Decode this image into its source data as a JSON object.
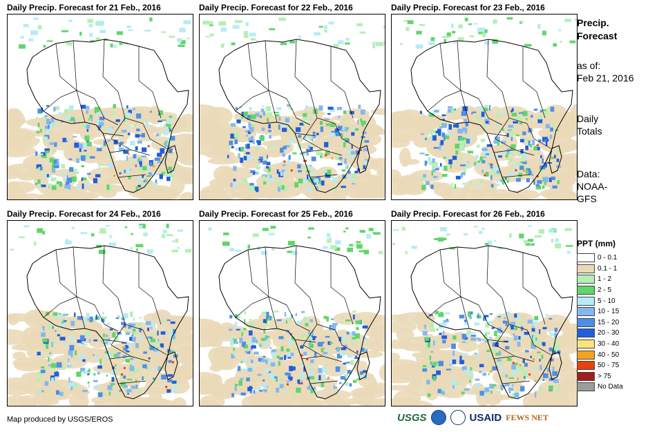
{
  "panels": [
    {
      "title": "Daily Precip. Forecast for 21 Feb., 2016"
    },
    {
      "title": "Daily Precip. Forecast for 22 Feb., 2016"
    },
    {
      "title": "Daily Precip. Forecast for 23 Feb., 2016"
    },
    {
      "title": "Daily Precip. Forecast for 24 Feb., 2016"
    },
    {
      "title": "Daily Precip. Forecast for 25 Feb., 2016"
    },
    {
      "title": "Daily Precip. Forecast for 26 Feb., 2016"
    }
  ],
  "side": {
    "title_line1": "Precip.",
    "title_line2": "Forecast",
    "asof_label": "as of:",
    "asof_date": "Feb 21, 2016",
    "daily1": "Daily",
    "daily2": "Totals",
    "data_label": "Data:",
    "data_src1": "NOAA-",
    "data_src2": "GFS"
  },
  "legend": {
    "title": "PPT (mm)",
    "items": [
      {
        "label": "0 - 0.1",
        "color": "#ffffff"
      },
      {
        "label": "0.1 - 1",
        "color": "#ead9b8"
      },
      {
        "label": "1 - 2",
        "color": "#b4f0b4"
      },
      {
        "label": "2 - 5",
        "color": "#5fd66a"
      },
      {
        "label": "5 - 10",
        "color": "#b6ecf4"
      },
      {
        "label": "10 - 15",
        "color": "#82b8ef"
      },
      {
        "label": "15 - 20",
        "color": "#4f8ee8"
      },
      {
        "label": "20 - 30",
        "color": "#1f5fdc"
      },
      {
        "label": "30 - 40",
        "color": "#fbe27a"
      },
      {
        "label": "40 - 50",
        "color": "#f5a21e"
      },
      {
        "label": "50 - 75",
        "color": "#e8400f"
      },
      {
        "label": "> 75",
        "color": "#a01e1e"
      },
      {
        "label": "No Data",
        "color": "#9c9c9c"
      }
    ]
  },
  "footer": {
    "credit": "Map produced by USGS/EROS"
  },
  "logos": {
    "usgs": "USGS",
    "usaid": "USAID",
    "fews": "FEWS NET"
  }
}
